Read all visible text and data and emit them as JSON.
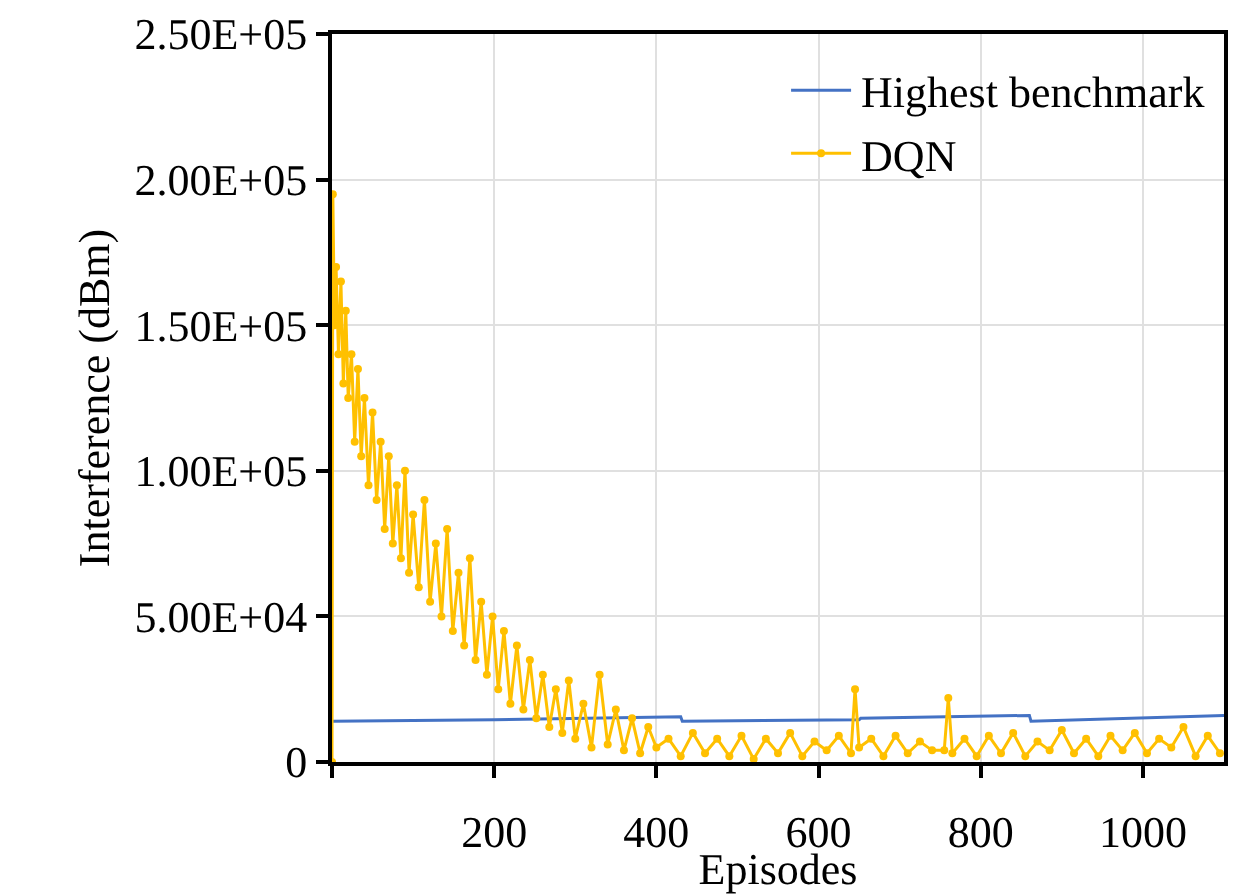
{
  "chart_data": {
    "type": "line",
    "xlabel": "Episodes",
    "ylabel": "Interference (dBm)",
    "xlim": [
      0,
      1100
    ],
    "xticks": [
      {
        "value": 0,
        "label": null
      },
      200,
      400,
      600,
      800,
      1000
    ],
    "ylim": [
      0,
      250000
    ],
    "yticks": [
      {
        "value": 0,
        "label": "0"
      },
      {
        "value": 50000,
        "label": "5.00E+04"
      },
      {
        "value": 100000,
        "label": "1.00E+05"
      },
      {
        "value": 150000,
        "label": "1.50E+05"
      },
      {
        "value": 200000,
        "label": "2.00E+05"
      },
      {
        "value": 250000,
        "label": "2.50E+05"
      }
    ],
    "grid": true,
    "legend": "top right",
    "line_style": "solid",
    "series": [
      {
        "name": "Highest benchmark",
        "color": "#4472c4",
        "marker": "none",
        "x": [
          0,
          200,
          430,
          432,
          650,
          652,
          860,
          862,
          1100
        ],
        "values": [
          14000,
          14500,
          15500,
          14000,
          14500,
          15000,
          16000,
          14000,
          16000
        ]
      },
      {
        "name": "DQN",
        "color": "#ffc000",
        "marker": "circle",
        "x": [
          0,
          1,
          3,
          5,
          8,
          11,
          14,
          17,
          20,
          24,
          28,
          32,
          36,
          40,
          45,
          50,
          55,
          60,
          65,
          70,
          75,
          80,
          85,
          90,
          95,
          100,
          107,
          114,
          121,
          128,
          135,
          142,
          149,
          156,
          163,
          170,
          177,
          184,
          191,
          198,
          205,
          212,
          220,
          228,
          236,
          244,
          252,
          260,
          268,
          276,
          284,
          292,
          300,
          310,
          320,
          330,
          340,
          350,
          360,
          370,
          380,
          390,
          400,
          415,
          430,
          445,
          460,
          475,
          490,
          505,
          520,
          535,
          550,
          565,
          580,
          595,
          610,
          625,
          640,
          645,
          650,
          665,
          680,
          695,
          710,
          725,
          740,
          755,
          760,
          765,
          780,
          795,
          810,
          825,
          840,
          855,
          870,
          885,
          900,
          915,
          930,
          945,
          960,
          975,
          990,
          1005,
          1020,
          1035,
          1050,
          1065,
          1080,
          1095
        ],
        "values": [
          0,
          195000,
          150000,
          170000,
          140000,
          165000,
          130000,
          155000,
          125000,
          140000,
          110000,
          135000,
          105000,
          125000,
          95000,
          120000,
          90000,
          110000,
          80000,
          105000,
          75000,
          95000,
          70000,
          100000,
          65000,
          85000,
          60000,
          90000,
          55000,
          75000,
          50000,
          80000,
          45000,
          65000,
          40000,
          70000,
          35000,
          55000,
          30000,
          50000,
          25000,
          45000,
          20000,
          40000,
          18000,
          35000,
          15000,
          30000,
          12000,
          25000,
          10000,
          28000,
          8000,
          20000,
          5000,
          30000,
          6000,
          18000,
          4000,
          15000,
          3000,
          12000,
          5000,
          8000,
          2000,
          10000,
          3000,
          8000,
          2000,
          9000,
          1000,
          8000,
          3000,
          10000,
          2000,
          7000,
          4000,
          9000,
          3000,
          25000,
          5000,
          8000,
          2000,
          9000,
          3000,
          7000,
          4000,
          4000,
          22000,
          3000,
          8000,
          2000,
          9000,
          3000,
          10000,
          2000,
          7000,
          4000,
          11000,
          3000,
          8000,
          2000,
          9000,
          4000,
          10000,
          3000,
          8000,
          5000,
          12000,
          2000,
          9000,
          3000
        ]
      }
    ]
  }
}
